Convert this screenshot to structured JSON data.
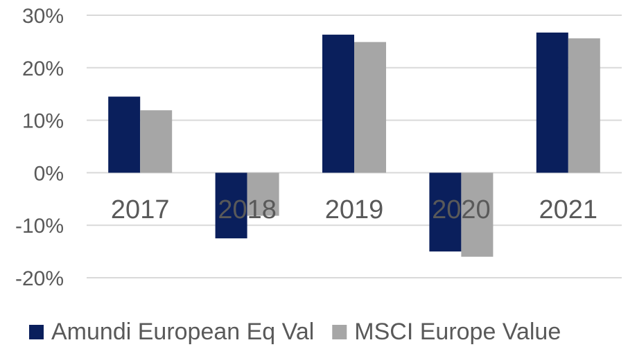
{
  "chart_data": {
    "type": "bar",
    "categories": [
      "2017",
      "2018",
      "2019",
      "2020",
      "2021"
    ],
    "series": [
      {
        "name": "Amundi European Eq Val",
        "color": "#0a1f5c",
        "values": [
          14.5,
          -12.5,
          26.3,
          -15.0,
          26.7
        ]
      },
      {
        "name": "MSCI Europe Value",
        "color": "#a6a6a6",
        "values": [
          11.9,
          -8.2,
          24.9,
          -16.0,
          25.6
        ]
      }
    ],
    "ylim": [
      -20,
      30
    ],
    "yticks": [
      30,
      20,
      10,
      0,
      -10,
      -20
    ],
    "ytick_labels": [
      "30%",
      "20%",
      "10%",
      "0%",
      "-10%",
      "-20%"
    ],
    "grid": true,
    "legend_position": "bottom"
  }
}
